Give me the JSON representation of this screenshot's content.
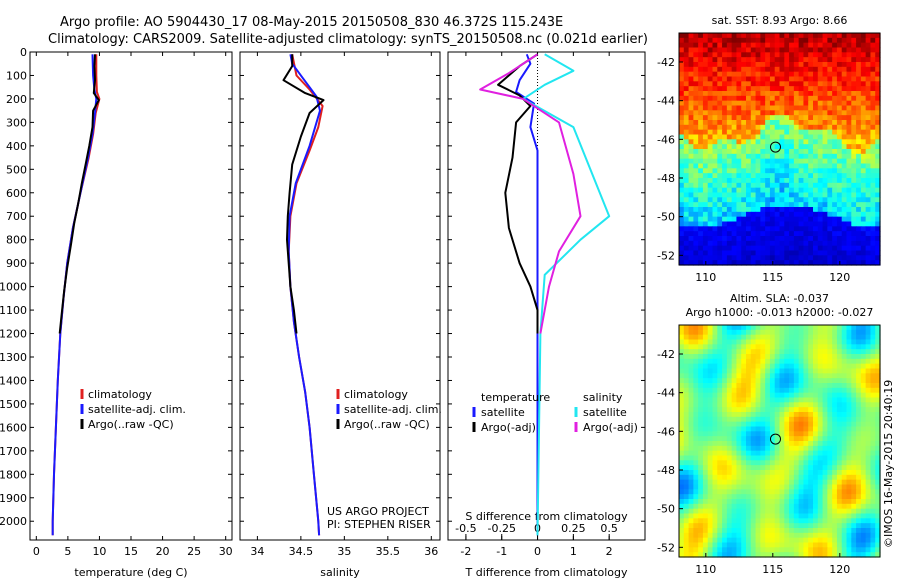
{
  "header": {
    "line1": "Argo profile: AO 5904430_17 08-May-2015 20150508_830 46.372S 115.243E",
    "line2": "Climatology: CARS2009. Satellite-adjusted climatology: synTS_20150508.nc (0.021d earlier)"
  },
  "footer": {
    "credit1": "US ARGO PROJECT",
    "credit2": "PI: STEPHEN RISER",
    "side_stamp": "©IMOS 16-May-2015 20:40:19"
  },
  "colors": {
    "climatology": "#e02020",
    "satellite": "#1a1aff",
    "argo": "#000000",
    "salinity_sat": "#22e6f0",
    "salinity_argo": "#e020e0"
  },
  "chart_data": [
    {
      "type": "line",
      "name": "temperature",
      "xlabel": "temperature (deg C)",
      "xlim": [
        -1,
        31
      ],
      "xticks": [
        0,
        5,
        10,
        15,
        20,
        25,
        30
      ],
      "ylim": [
        2080,
        0
      ],
      "yticks": [
        0,
        100,
        200,
        300,
        400,
        500,
        600,
        700,
        800,
        900,
        1000,
        1100,
        1200,
        1300,
        1400,
        1500,
        1600,
        1700,
        1800,
        1900,
        2000
      ],
      "legend": [
        "climatology",
        "satellite-adj. clim.",
        "Argo(..raw -QC)"
      ],
      "series": [
        {
          "name": "climatology",
          "color": "#e02020",
          "points": [
            [
              9.5,
              10
            ],
            [
              9.5,
              100
            ],
            [
              9.6,
              170
            ],
            [
              10.0,
              200
            ],
            [
              9.4,
              260
            ],
            [
              9.0,
              350
            ],
            [
              8.3,
              450
            ],
            [
              7.0,
              600
            ],
            [
              5.8,
              750
            ],
            [
              4.9,
              900
            ],
            [
              4.3,
              1050
            ],
            [
              3.8,
              1200
            ],
            [
              3.4,
              1400
            ],
            [
              3.1,
              1600
            ],
            [
              2.8,
              1800
            ],
            [
              2.6,
              2000
            ],
            [
              2.6,
              2060
            ]
          ]
        },
        {
          "name": "satellite-adj. clim.",
          "color": "#1a1aff",
          "points": [
            [
              8.9,
              10
            ],
            [
              9.0,
              100
            ],
            [
              9.2,
              160
            ],
            [
              9.5,
              200
            ],
            [
              9.3,
              260
            ],
            [
              8.9,
              350
            ],
            [
              8.2,
              450
            ],
            [
              7.0,
              600
            ],
            [
              5.8,
              750
            ],
            [
              4.9,
              900
            ],
            [
              4.3,
              1050
            ],
            [
              3.8,
              1200
            ],
            [
              3.4,
              1400
            ],
            [
              3.1,
              1600
            ],
            [
              2.8,
              1800
            ],
            [
              2.6,
              2000
            ],
            [
              2.6,
              2060
            ]
          ]
        },
        {
          "name": "Argo(..raw -QC)",
          "color": "#000000",
          "points": [
            [
              9.3,
              10
            ],
            [
              9.2,
              60
            ],
            [
              9.3,
              120
            ],
            [
              9.1,
              175
            ],
            [
              9.9,
              205
            ],
            [
              9.0,
              250
            ],
            [
              8.9,
              320
            ],
            [
              8.4,
              400
            ],
            [
              7.8,
              480
            ],
            [
              7.2,
              560
            ],
            [
              6.6,
              650
            ],
            [
              6.0,
              730
            ],
            [
              5.5,
              820
            ],
            [
              4.9,
              920
            ],
            [
              4.4,
              1020
            ],
            [
              4.0,
              1120
            ],
            [
              3.7,
              1200
            ]
          ]
        }
      ]
    },
    {
      "type": "line",
      "name": "salinity",
      "xlabel": "salinity",
      "xlim": [
        33.8,
        36.1
      ],
      "xticks": [
        34,
        34.5,
        35,
        35.5,
        36
      ],
      "ylim": [
        2080,
        0
      ],
      "legend": [
        "climatology",
        "satellite-adj. clim.",
        "Argo(..raw -QC)"
      ],
      "series": [
        {
          "name": "climatology",
          "color": "#e02020",
          "points": [
            [
              34.4,
              10
            ],
            [
              34.45,
              100
            ],
            [
              34.6,
              160
            ],
            [
              34.75,
              230
            ],
            [
              34.7,
              320
            ],
            [
              34.6,
              420
            ],
            [
              34.45,
              560
            ],
            [
              34.38,
              700
            ],
            [
              34.36,
              850
            ],
            [
              34.38,
              1000
            ],
            [
              34.42,
              1150
            ],
            [
              34.48,
              1300
            ],
            [
              34.55,
              1450
            ],
            [
              34.6,
              1600
            ],
            [
              34.65,
              1800
            ],
            [
              34.7,
              2000
            ],
            [
              34.71,
              2060
            ]
          ]
        },
        {
          "name": "satellite-adj. clim.",
          "color": "#1a1aff",
          "points": [
            [
              34.38,
              10
            ],
            [
              34.4,
              50
            ],
            [
              34.52,
              110
            ],
            [
              34.6,
              150
            ],
            [
              34.68,
              190
            ],
            [
              34.72,
              250
            ],
            [
              34.6,
              400
            ],
            [
              34.44,
              560
            ],
            [
              34.37,
              700
            ],
            [
              34.36,
              850
            ],
            [
              34.38,
              1000
            ],
            [
              34.42,
              1150
            ],
            [
              34.48,
              1300
            ],
            [
              34.55,
              1450
            ],
            [
              34.6,
              1600
            ],
            [
              34.65,
              1800
            ],
            [
              34.7,
              2000
            ],
            [
              34.71,
              2060
            ]
          ]
        },
        {
          "name": "Argo(..raw -QC)",
          "color": "#000000",
          "points": [
            [
              34.4,
              10
            ],
            [
              34.4,
              60
            ],
            [
              34.3,
              120
            ],
            [
              34.55,
              175
            ],
            [
              34.76,
              205
            ],
            [
              34.6,
              260
            ],
            [
              34.5,
              360
            ],
            [
              34.4,
              480
            ],
            [
              34.37,
              600
            ],
            [
              34.35,
              700
            ],
            [
              34.34,
              800
            ],
            [
              34.36,
              900
            ],
            [
              34.38,
              1000
            ],
            [
              34.42,
              1100
            ],
            [
              34.45,
              1200
            ]
          ]
        }
      ]
    },
    {
      "type": "line",
      "name": "difference",
      "xlabel": "T difference from climatology",
      "xlabel2": "S difference from climatology",
      "xlim": [
        -2.5,
        3
      ],
      "xticks": [
        -2,
        -1,
        0,
        1,
        2
      ],
      "xticks2": [
        -0.5,
        -0.25,
        0,
        0.25,
        0.5
      ],
      "ylim": [
        2080,
        0
      ],
      "legend_title_t": "temperature",
      "legend_title_s": "salinity",
      "legend": [
        "satellite",
        "Argo(-adj)",
        "satellite",
        "Argo(-adj)"
      ],
      "series": [
        {
          "name": "T satellite",
          "color": "#1a1aff",
          "points": [
            [
              -0.3,
              10
            ],
            [
              -0.2,
              50
            ],
            [
              -0.5,
              120
            ],
            [
              -0.6,
              170
            ],
            [
              -0.1,
              220
            ],
            [
              -0.2,
              320
            ],
            [
              0.0,
              420
            ],
            [
              0.0,
              1000
            ],
            [
              0.0,
              2060
            ]
          ]
        },
        {
          "name": "T Argo(-adj)",
          "color": "#000000",
          "points": [
            [
              0.0,
              10
            ],
            [
              -0.5,
              60
            ],
            [
              -1.1,
              140
            ],
            [
              -0.5,
              185
            ],
            [
              -0.2,
              230
            ],
            [
              -0.6,
              300
            ],
            [
              -0.7,
              450
            ],
            [
              -0.9,
              600
            ],
            [
              -0.8,
              750
            ],
            [
              -0.5,
              900
            ],
            [
              -0.2,
              1000
            ],
            [
              0.0,
              1100
            ],
            [
              0.0,
              1200
            ]
          ]
        },
        {
          "name": "S satellite",
          "color": "#22e6f0",
          "points": [
            [
              0.05,
              10
            ],
            [
              0.25,
              80
            ],
            [
              0.05,
              140
            ],
            [
              -0.1,
              200
            ],
            [
              0.25,
              320
            ],
            [
              0.5,
              700
            ],
            [
              0.3,
              800
            ],
            [
              0.05,
              950
            ],
            [
              0.02,
              1200
            ],
            [
              0.0,
              2060
            ]
          ]
        },
        {
          "name": "S Argo(-adj)",
          "color": "#e020e0",
          "points": [
            [
              0.0,
              10
            ],
            [
              -0.2,
              90
            ],
            [
              -0.4,
              160
            ],
            [
              -0.1,
              200
            ],
            [
              0.15,
              300
            ],
            [
              0.25,
              520
            ],
            [
              0.3,
              700
            ],
            [
              0.15,
              850
            ],
            [
              0.08,
              1000
            ],
            [
              0.02,
              1200
            ]
          ]
        }
      ]
    },
    {
      "type": "heatmap",
      "name": "sst-map",
      "title": "sat. SST: 8.93 Argo: 8.66",
      "xlim": [
        108,
        123
      ],
      "xticks": [
        110,
        115,
        120
      ],
      "ylim": [
        -52.5,
        -40.5
      ],
      "yticks": [
        -42,
        -44,
        -46,
        -48,
        -50,
        -52
      ],
      "marker": [
        115.2,
        -46.4
      ]
    },
    {
      "type": "heatmap",
      "name": "sla-map",
      "title": "Altim. SLA: -0.037",
      "subtitle": "Argo h1000: -0.013 h2000: -0.027",
      "xlim": [
        108,
        123
      ],
      "xticks": [
        110,
        115,
        120
      ],
      "ylim": [
        -52.5,
        -40.5
      ],
      "yticks": [
        -42,
        -44,
        -46,
        -48,
        -50,
        -52
      ],
      "marker": [
        115.2,
        -46.4
      ]
    }
  ]
}
